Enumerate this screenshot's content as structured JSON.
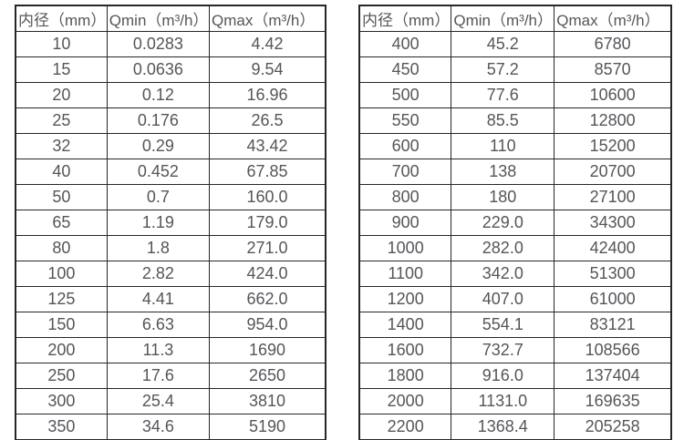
{
  "colors": {
    "background": "#ffffff",
    "text": "#54565a",
    "border": "#262626"
  },
  "tables": [
    {
      "name": "small-diameter-flow-table",
      "headers": [
        "内径（mm）",
        "Qmin（m³/h）",
        "Qmax（m³/h）"
      ],
      "rows": [
        [
          "10",
          "0.0283",
          "4.42"
        ],
        [
          "15",
          "0.0636",
          "9.54"
        ],
        [
          "20",
          "0.12",
          "16.96"
        ],
        [
          "25",
          "0.176",
          "26.5"
        ],
        [
          "32",
          "0.29",
          "43.42"
        ],
        [
          "40",
          "0.452",
          "67.85"
        ],
        [
          "50",
          "0.7",
          "160.0"
        ],
        [
          "65",
          "1.19",
          "179.0"
        ],
        [
          "80",
          "1.8",
          "271.0"
        ],
        [
          "100",
          "2.82",
          "424.0"
        ],
        [
          "125",
          "4.41",
          "662.0"
        ],
        [
          "150",
          "6.63",
          "954.0"
        ],
        [
          "200",
          "11.3",
          "1690"
        ],
        [
          "250",
          "17.6",
          "2650"
        ],
        [
          "300",
          "25.4",
          "3810"
        ],
        [
          "350",
          "34.6",
          "5190"
        ]
      ]
    },
    {
      "name": "large-diameter-flow-table",
      "headers": [
        "内径（mm）",
        "Qmin（m³/h）",
        "Qmax（m³/h）"
      ],
      "rows": [
        [
          "400",
          "45.2",
          "6780"
        ],
        [
          "450",
          "57.2",
          "8570"
        ],
        [
          "500",
          "77.6",
          "10600"
        ],
        [
          "550",
          "85.5",
          "12800"
        ],
        [
          "600",
          "110",
          "15200"
        ],
        [
          "700",
          "138",
          "20700"
        ],
        [
          "800",
          "180",
          "27100"
        ],
        [
          "900",
          "229.0",
          "34300"
        ],
        [
          "1000",
          "282.0",
          "42400"
        ],
        [
          "1100",
          "342.0",
          "51300"
        ],
        [
          "1200",
          "407.0",
          "61000"
        ],
        [
          "1400",
          "554.1",
          "83121"
        ],
        [
          "1600",
          "732.7",
          "108566"
        ],
        [
          "1800",
          "916.0",
          "137404"
        ],
        [
          "2000",
          "1131.0",
          "169635"
        ],
        [
          "2200",
          "1368.4",
          "205258"
        ]
      ]
    }
  ]
}
